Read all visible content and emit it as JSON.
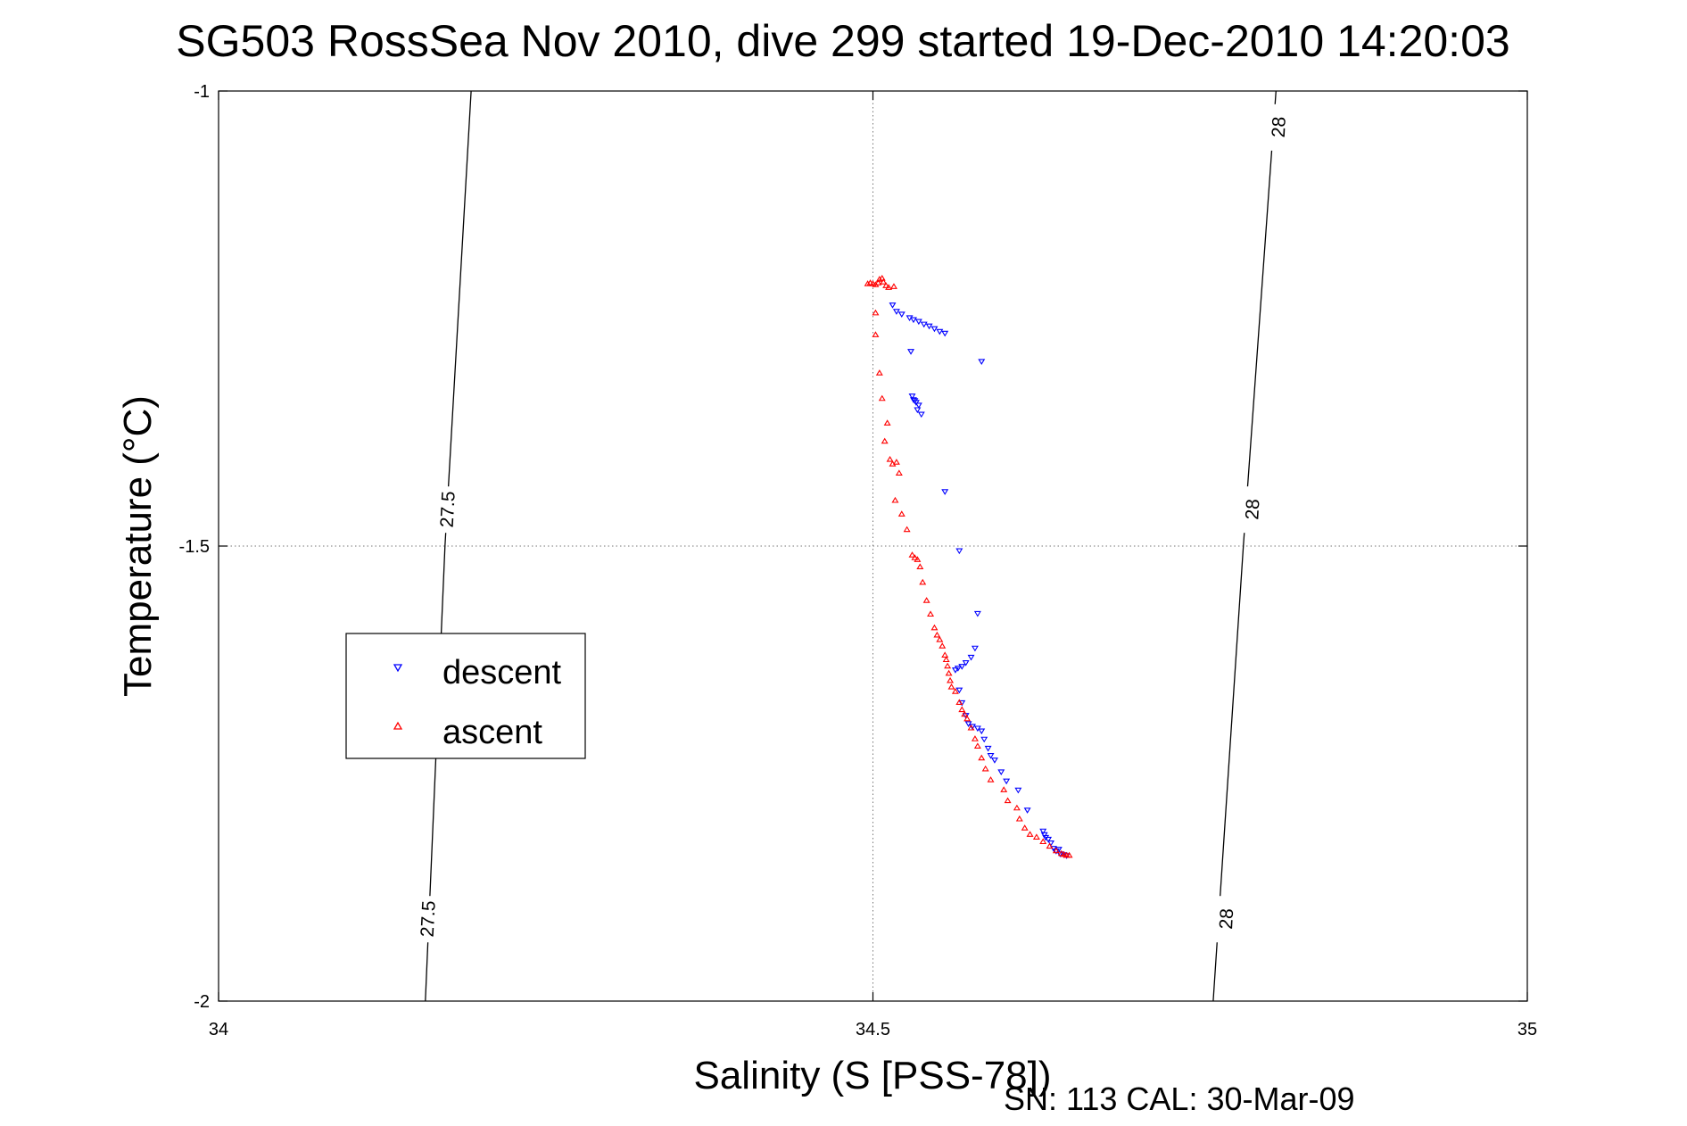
{
  "chart_data": {
    "type": "scatter",
    "title": "SG503 RossSea Nov 2010, dive 299 started 19-Dec-2010 14:20:03",
    "xlabel": "Salinity (S [PSS-78])",
    "ylabel": "Temperature (°C)",
    "xlim": [
      34,
      35
    ],
    "ylim": [
      -2,
      -1
    ],
    "xticks": [
      34,
      34.5,
      35
    ],
    "xtick_labels": [
      "34",
      "34.5",
      "35"
    ],
    "yticks": [
      -1,
      -1.5,
      -2
    ],
    "ytick_labels": [
      "-1",
      "-1.5",
      "-2"
    ],
    "grid": true,
    "legend_position": "left",
    "footnote": "SN: 113  CAL: 30-Mar-09",
    "isopycnals": [
      {
        "label": "27.5",
        "points": [
          [
            34.193,
            -1.0
          ],
          [
            34.173,
            -1.5
          ],
          [
            34.158,
            -2.0
          ]
        ],
        "label_positions": [
          [
            34.175,
            -1.46
          ],
          [
            34.16,
            -1.91
          ]
        ]
      },
      {
        "label": "28",
        "points": [
          [
            34.808,
            -1.0
          ],
          [
            34.783,
            -1.5
          ],
          [
            34.76,
            -2.0
          ]
        ],
        "label_positions": [
          [
            34.81,
            -1.04
          ],
          [
            34.79,
            -1.46
          ],
          [
            34.77,
            -1.91
          ]
        ]
      }
    ],
    "series": [
      {
        "name": "descent",
        "color": "#0000ff",
        "marker": "triangle-down",
        "points": [
          [
            34.515,
            -1.235
          ],
          [
            34.518,
            -1.242
          ],
          [
            34.522,
            -1.245
          ],
          [
            34.528,
            -1.249
          ],
          [
            34.531,
            -1.251
          ],
          [
            34.535,
            -1.253
          ],
          [
            34.539,
            -1.256
          ],
          [
            34.543,
            -1.258
          ],
          [
            34.547,
            -1.261
          ],
          [
            34.551,
            -1.264
          ],
          [
            34.555,
            -1.266
          ],
          [
            34.583,
            -1.297
          ],
          [
            34.529,
            -1.286
          ],
          [
            34.53,
            -1.335
          ],
          [
            34.531,
            -1.339
          ],
          [
            34.532,
            -1.34
          ],
          [
            34.533,
            -1.342
          ],
          [
            34.535,
            -1.345
          ],
          [
            34.534,
            -1.35
          ],
          [
            34.537,
            -1.355
          ],
          [
            34.555,
            -1.44
          ],
          [
            34.566,
            -1.505
          ],
          [
            34.58,
            -1.574
          ],
          [
            34.578,
            -1.612
          ],
          [
            34.575,
            -1.622
          ],
          [
            34.571,
            -1.628
          ],
          [
            34.568,
            -1.632
          ],
          [
            34.565,
            -1.634
          ],
          [
            34.563,
            -1.636
          ],
          [
            34.566,
            -1.658
          ],
          [
            34.568,
            -1.672
          ],
          [
            34.571,
            -1.686
          ],
          [
            34.573,
            -1.695
          ],
          [
            34.576,
            -1.698
          ],
          [
            34.58,
            -1.7
          ],
          [
            34.583,
            -1.703
          ],
          [
            34.585,
            -1.712
          ],
          [
            34.588,
            -1.722
          ],
          [
            34.59,
            -1.73
          ],
          [
            34.593,
            -1.735
          ],
          [
            34.598,
            -1.748
          ],
          [
            34.602,
            -1.758
          ],
          [
            34.611,
            -1.768
          ],
          [
            34.618,
            -1.79
          ],
          [
            34.63,
            -1.813
          ],
          [
            34.631,
            -1.817
          ],
          [
            34.632,
            -1.82
          ],
          [
            34.634,
            -1.822
          ],
          [
            34.636,
            -1.826
          ],
          [
            34.638,
            -1.832
          ],
          [
            34.64,
            -1.835
          ],
          [
            34.643,
            -1.838
          ],
          [
            34.646,
            -1.839
          ],
          [
            34.642,
            -1.833
          ],
          [
            34.648,
            -1.84
          ]
        ]
      },
      {
        "name": "ascent",
        "color": "#ff0000",
        "marker": "triangle-up",
        "points": [
          [
            34.496,
            -1.212
          ],
          [
            34.498,
            -1.211
          ],
          [
            34.5,
            -1.212
          ],
          [
            34.502,
            -1.213
          ],
          [
            34.504,
            -1.211
          ],
          [
            34.505,
            -1.207
          ],
          [
            34.507,
            -1.206
          ],
          [
            34.508,
            -1.21
          ],
          [
            34.51,
            -1.214
          ],
          [
            34.512,
            -1.216
          ],
          [
            34.516,
            -1.215
          ],
          [
            34.502,
            -1.244
          ],
          [
            34.502,
            -1.268
          ],
          [
            34.505,
            -1.31
          ],
          [
            34.507,
            -1.338
          ],
          [
            34.511,
            -1.365
          ],
          [
            34.509,
            -1.385
          ],
          [
            34.513,
            -1.405
          ],
          [
            34.515,
            -1.41
          ],
          [
            34.518,
            -1.408
          ],
          [
            34.52,
            -1.42
          ],
          [
            34.517,
            -1.45
          ],
          [
            34.522,
            -1.465
          ],
          [
            34.526,
            -1.482
          ],
          [
            34.53,
            -1.51
          ],
          [
            34.532,
            -1.513
          ],
          [
            34.534,
            -1.515
          ],
          [
            34.536,
            -1.523
          ],
          [
            34.538,
            -1.54
          ],
          [
            34.541,
            -1.56
          ],
          [
            34.544,
            -1.575
          ],
          [
            34.547,
            -1.59
          ],
          [
            34.549,
            -1.598
          ],
          [
            34.551,
            -1.603
          ],
          [
            34.553,
            -1.61
          ],
          [
            34.555,
            -1.62
          ],
          [
            34.556,
            -1.625
          ],
          [
            34.557,
            -1.632
          ],
          [
            34.558,
            -1.64
          ],
          [
            34.559,
            -1.648
          ],
          [
            34.56,
            -1.655
          ],
          [
            34.563,
            -1.66
          ],
          [
            34.566,
            -1.672
          ],
          [
            34.568,
            -1.68
          ],
          [
            34.57,
            -1.685
          ],
          [
            34.572,
            -1.69
          ],
          [
            34.575,
            -1.7
          ],
          [
            34.578,
            -1.712
          ],
          [
            34.58,
            -1.72
          ],
          [
            34.583,
            -1.733
          ],
          [
            34.586,
            -1.745
          ],
          [
            34.59,
            -1.757
          ],
          [
            34.6,
            -1.768
          ],
          [
            34.603,
            -1.78
          ],
          [
            34.61,
            -1.788
          ],
          [
            34.612,
            -1.8
          ],
          [
            34.616,
            -1.81
          ],
          [
            34.62,
            -1.817
          ],
          [
            34.625,
            -1.82
          ],
          [
            34.63,
            -1.825
          ],
          [
            34.635,
            -1.83
          ],
          [
            34.64,
            -1.835
          ],
          [
            34.644,
            -1.838
          ],
          [
            34.646,
            -1.839
          ],
          [
            34.648,
            -1.84
          ],
          [
            34.65,
            -1.84
          ]
        ]
      }
    ]
  }
}
